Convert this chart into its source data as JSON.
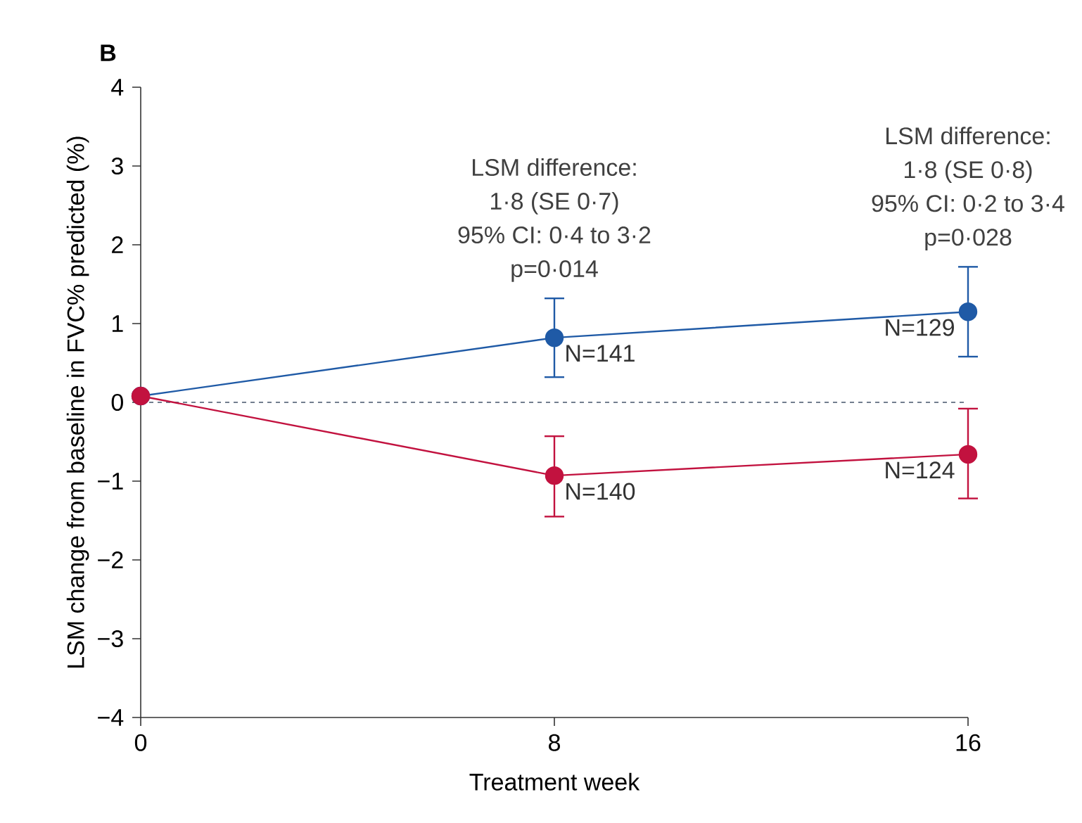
{
  "chart_data": {
    "type": "line",
    "title": "B",
    "xlabel": "Treatment week",
    "ylabel": "LSM change from baseline in FVC% predicted (%)",
    "x": [
      0,
      8,
      16
    ],
    "series": [
      {
        "color": "#1f5aa6",
        "values": [
          0.08,
          0.82,
          1.15
        ],
        "errors": [
          null,
          [
            0.32,
            1.32
          ],
          [
            0.58,
            1.72
          ]
        ]
      },
      {
        "color": "#c2123f",
        "values": [
          0.08,
          -0.93,
          -0.66
        ],
        "errors": [
          null,
          [
            -1.45,
            -0.43
          ],
          [
            -1.22,
            -0.08
          ]
        ]
      }
    ],
    "xlim": [
      0,
      16
    ],
    "xticks": [
      0,
      8,
      16
    ],
    "ylim": [
      -4,
      4
    ],
    "yticks": [
      {
        "value": -4,
        "label": "−4"
      },
      {
        "value": -3,
        "label": "−3"
      },
      {
        "value": -2,
        "label": "−2"
      },
      {
        "value": -1,
        "label": "−1"
      },
      0,
      1,
      2,
      3,
      4
    ],
    "ref_lines": [
      {
        "axis": "y",
        "value": 0,
        "color": "#44546a",
        "line_style": "dashed"
      }
    ],
    "marker": "circle",
    "line_style": "solid",
    "annotations": [
      "LSM difference:",
      "1·8 (SE 0·7)",
      "95% CI: 0·4 to 3·2",
      "p=0·014",
      "LSM difference:",
      "1·8 (SE 0·8)",
      "95% CI: 0·2 to 3·4",
      "p=0·028",
      "N=141",
      "N=129",
      "N=140",
      "N=124"
    ]
  }
}
